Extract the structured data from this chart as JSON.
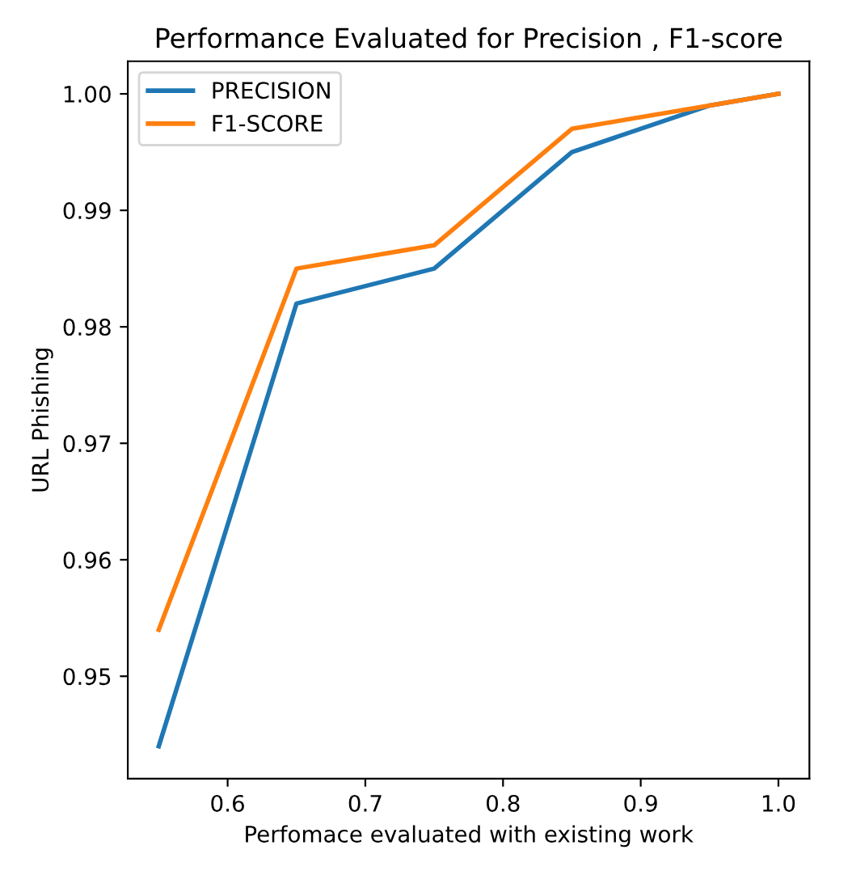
{
  "chart_data": {
    "type": "line",
    "title": "Performance Evaluated for Precision , F1-score",
    "xlabel": "Perfomace evaluated with existing work",
    "ylabel": "URL Phishing",
    "x": [
      0.55,
      0.65,
      0.75,
      0.85,
      0.95,
      1.0
    ],
    "series": [
      {
        "name": "PRECISION",
        "color": "#1f77b4",
        "values": [
          0.944,
          0.982,
          0.985,
          0.995,
          0.999,
          1.0
        ]
      },
      {
        "name": "F1-SCORE",
        "color": "#ff7f0e",
        "values": [
          0.954,
          0.985,
          0.987,
          0.997,
          0.999,
          1.0
        ]
      }
    ],
    "xlim": [
      0.5275,
      1.0225
    ],
    "ylim": [
      0.9412,
      1.0028
    ],
    "xticks": [
      0.6,
      0.7,
      0.8,
      0.9,
      {
        "value": 1.0,
        "label": "1.0"
      }
    ],
    "yticks": [
      {
        "value": 0.95,
        "label": "0.95"
      },
      {
        "value": 0.96,
        "label": "0.96"
      },
      {
        "value": 0.97,
        "label": "0.97"
      },
      {
        "value": 0.98,
        "label": "0.98"
      },
      {
        "value": 0.99,
        "label": "0.99"
      },
      {
        "value": 1.0,
        "label": "1.00"
      }
    ],
    "legend": "top left",
    "grid": false
  }
}
